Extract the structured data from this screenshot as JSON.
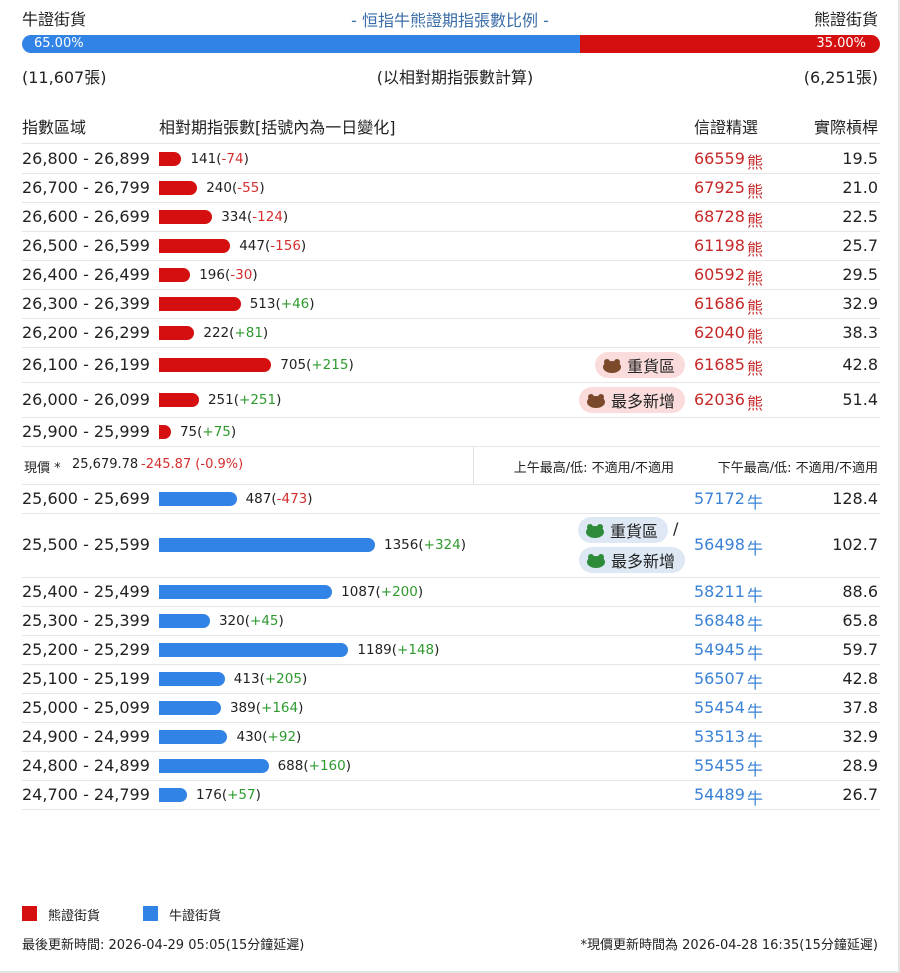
{
  "header": {
    "bull_label": "牛證街貨",
    "title": "- 恒指牛熊證期指張數比例 -",
    "bear_label": "熊證街貨",
    "bull_share": {
      "value": 65,
      "label": "65.00%"
    },
    "bear_share": {
      "value": 35,
      "label": "35.00%"
    },
    "bull_count": "(11,607張)",
    "note": "(以相對期指張數計算)",
    "bear_count": "(6,251張)"
  },
  "columns": [
    "指數區域",
    "相對期指張數[括號內為一日變化]",
    "信證精選",
    "實際槓桿"
  ],
  "bear_rows": [
    {
      "range": "26,800 - 26,899",
      "count": 141,
      "change": "-74",
      "pick": "66559",
      "side": "熊",
      "leverage": "19.5"
    },
    {
      "range": "26,700 - 26,799",
      "count": 240,
      "change": "-55",
      "pick": "67925",
      "side": "熊",
      "leverage": "21.0"
    },
    {
      "range": "26,600 - 26,699",
      "count": 334,
      "change": "-124",
      "pick": "68728",
      "side": "熊",
      "leverage": "22.5"
    },
    {
      "range": "26,500 - 26,599",
      "count": 447,
      "change": "-156",
      "pick": "61198",
      "side": "熊",
      "leverage": "25.7"
    },
    {
      "range": "26,400 - 26,499",
      "count": 196,
      "change": "-30",
      "pick": "60592",
      "side": "熊",
      "leverage": "29.5"
    },
    {
      "range": "26,300 - 26,399",
      "count": 513,
      "change": "+46",
      "pick": "61686",
      "side": "熊",
      "leverage": "32.9"
    },
    {
      "range": "26,200 - 26,299",
      "count": 222,
      "change": "+81",
      "pick": "62040",
      "side": "熊",
      "leverage": "38.3"
    },
    {
      "range": "26,100 - 26,199",
      "count": 705,
      "change": "+215",
      "badges": [
        "重貨區"
      ],
      "pick": "61685",
      "side": "熊",
      "leverage": "42.8"
    },
    {
      "range": "26,000 - 26,099",
      "count": 251,
      "change": "+251",
      "badges": [
        "最多新增"
      ],
      "pick": "62036",
      "side": "熊",
      "leverage": "51.4"
    },
    {
      "range": "25,900 - 25,999",
      "count": 75,
      "change": "+75"
    }
  ],
  "price": {
    "label": "現價 *",
    "value": "25,679.78",
    "change": "-245.87 (-0.9%)",
    "am": "上午最高/低: 不適用/不適用",
    "pm": "下午最高/低: 不適用/不適用"
  },
  "bull_rows": [
    {
      "range": "25,600 - 25,699",
      "count": 487,
      "change": "-473",
      "pick": "57172",
      "side": "牛",
      "leverage": "128.4"
    },
    {
      "range": "25,500 - 25,599",
      "count": 1356,
      "change": "+324",
      "badges": [
        "重貨區",
        "最多新增"
      ],
      "badge_separator": "/",
      "pick": "56498",
      "side": "牛",
      "leverage": "102.7"
    },
    {
      "range": "25,400 - 25,499",
      "count": 1087,
      "change": "+200",
      "pick": "58211",
      "side": "牛",
      "leverage": "88.6"
    },
    {
      "range": "25,300 - 25,399",
      "count": 320,
      "change": "+45",
      "pick": "56848",
      "side": "牛",
      "leverage": "65.8"
    },
    {
      "range": "25,200 - 25,299",
      "count": 1189,
      "change": "+148",
      "pick": "54945",
      "side": "牛",
      "leverage": "59.7"
    },
    {
      "range": "25,100 - 25,199",
      "count": 413,
      "change": "+205",
      "pick": "56507",
      "side": "牛",
      "leverage": "42.8"
    },
    {
      "range": "25,000 - 25,099",
      "count": 389,
      "change": "+164",
      "pick": "55454",
      "side": "牛",
      "leverage": "37.8"
    },
    {
      "range": "24,900 - 24,999",
      "count": 430,
      "change": "+92",
      "pick": "53513",
      "side": "牛",
      "leverage": "32.9"
    },
    {
      "range": "24,800 - 24,899",
      "count": 688,
      "change": "+160",
      "pick": "55455",
      "side": "牛",
      "leverage": "28.9"
    },
    {
      "range": "24,700 - 24,799",
      "count": 176,
      "change": "+57",
      "pick": "54489",
      "side": "牛",
      "leverage": "26.7"
    }
  ],
  "legend": [
    "熊證街貨",
    "牛證街貨"
  ],
  "footer": {
    "updated": "最後更新時間: 2026-04-29 05:05(15分鐘延遲)",
    "price_updated": "*現價更新時間為 2026-04-28 16:35(15分鐘延遲)"
  }
}
